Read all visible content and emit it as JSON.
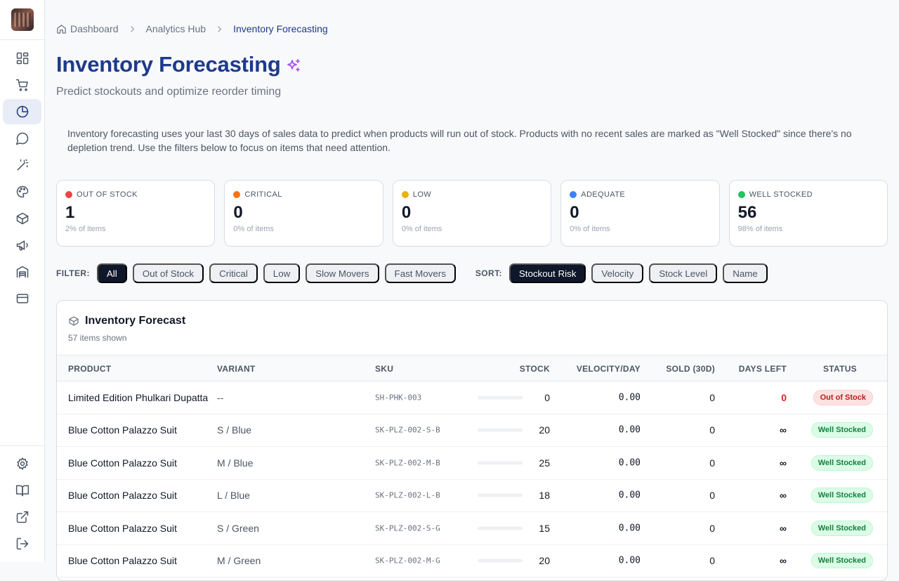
{
  "breadcrumb": {
    "items": [
      {
        "label": "Dashboard"
      },
      {
        "label": "Analytics Hub"
      },
      {
        "label": "Inventory Forecasting"
      }
    ]
  },
  "page": {
    "title": "Inventory Forecasting",
    "subtitle": "Predict stockouts and optimize reorder timing",
    "info": "Inventory forecasting uses your last 30 days of sales data to predict when products will run out of stock. Products with no recent sales are marked as \"Well Stocked\" since there's no depletion trend. Use the filters below to focus on items that need attention."
  },
  "stats": [
    {
      "label": "OUT OF STOCK",
      "value": "1",
      "sub": "2% of items",
      "color": "#ef4444"
    },
    {
      "label": "CRITICAL",
      "value": "0",
      "sub": "0% of items",
      "color": "#f97316"
    },
    {
      "label": "LOW",
      "value": "0",
      "sub": "0% of items",
      "color": "#eab308"
    },
    {
      "label": "ADEQUATE",
      "value": "0",
      "sub": "0% of items",
      "color": "#3b82f6"
    },
    {
      "label": "WELL STOCKED",
      "value": "56",
      "sub": "98% of items",
      "color": "#22c55e"
    }
  ],
  "filters": {
    "filter_label": "FILTER:",
    "filter_options": [
      "All",
      "Out of Stock",
      "Critical",
      "Low",
      "Slow Movers",
      "Fast Movers"
    ],
    "sort_label": "SORT:",
    "sort_options": [
      "Stockout Risk",
      "Velocity",
      "Stock Level",
      "Name"
    ]
  },
  "table": {
    "title": "Inventory Forecast",
    "count": "57 items shown",
    "headers": {
      "product": "PRODUCT",
      "variant": "VARIANT",
      "sku": "SKU",
      "stock": "STOCK",
      "velocity": "VELOCITY/DAY",
      "sold": "SOLD (30D)",
      "days": "DAYS LEFT",
      "status": "STATUS"
    },
    "rows": [
      {
        "product": "Limited Edition Phulkari Dupatta",
        "variant": "--",
        "sku": "SH-PHK-003",
        "stock": "0",
        "stock_level": 0.02,
        "velocity": "0.00",
        "sold": "0",
        "days": "0",
        "status": "Out of Stock"
      },
      {
        "product": "Blue Cotton Palazzo Suit",
        "variant": "S / Blue",
        "sku": "SK-PLZ-002-S-B",
        "stock": "20",
        "stock_level": 0.67,
        "velocity": "0.00",
        "sold": "0",
        "days": "∞",
        "status": "Well Stocked"
      },
      {
        "product": "Blue Cotton Palazzo Suit",
        "variant": "M / Blue",
        "sku": "SK-PLZ-002-M-B",
        "stock": "25",
        "stock_level": 0.83,
        "velocity": "0.00",
        "sold": "0",
        "days": "∞",
        "status": "Well Stocked"
      },
      {
        "product": "Blue Cotton Palazzo Suit",
        "variant": "L / Blue",
        "sku": "SK-PLZ-002-L-B",
        "stock": "18",
        "stock_level": 0.6,
        "velocity": "0.00",
        "sold": "0",
        "days": "∞",
        "status": "Well Stocked"
      },
      {
        "product": "Blue Cotton Palazzo Suit",
        "variant": "S / Green",
        "sku": "SK-PLZ-002-S-G",
        "stock": "15",
        "stock_level": 0.5,
        "velocity": "0.00",
        "sold": "0",
        "days": "∞",
        "status": "Well Stocked"
      },
      {
        "product": "Blue Cotton Palazzo Suit",
        "variant": "M / Green",
        "sku": "SK-PLZ-002-M-G",
        "stock": "20",
        "stock_level": 0.67,
        "velocity": "0.00",
        "sold": "0",
        "days": "∞",
        "status": "Well Stocked"
      }
    ]
  },
  "sidebar": {
    "icons": [
      "dashboard-icon",
      "cart-icon",
      "analytics-icon",
      "chat-icon",
      "magic-wand-icon",
      "palette-icon",
      "package-icon",
      "megaphone-icon",
      "warehouse-icon",
      "credit-card-icon",
      "settings-icon",
      "book-icon",
      "external-link-icon",
      "logout-icon"
    ]
  }
}
